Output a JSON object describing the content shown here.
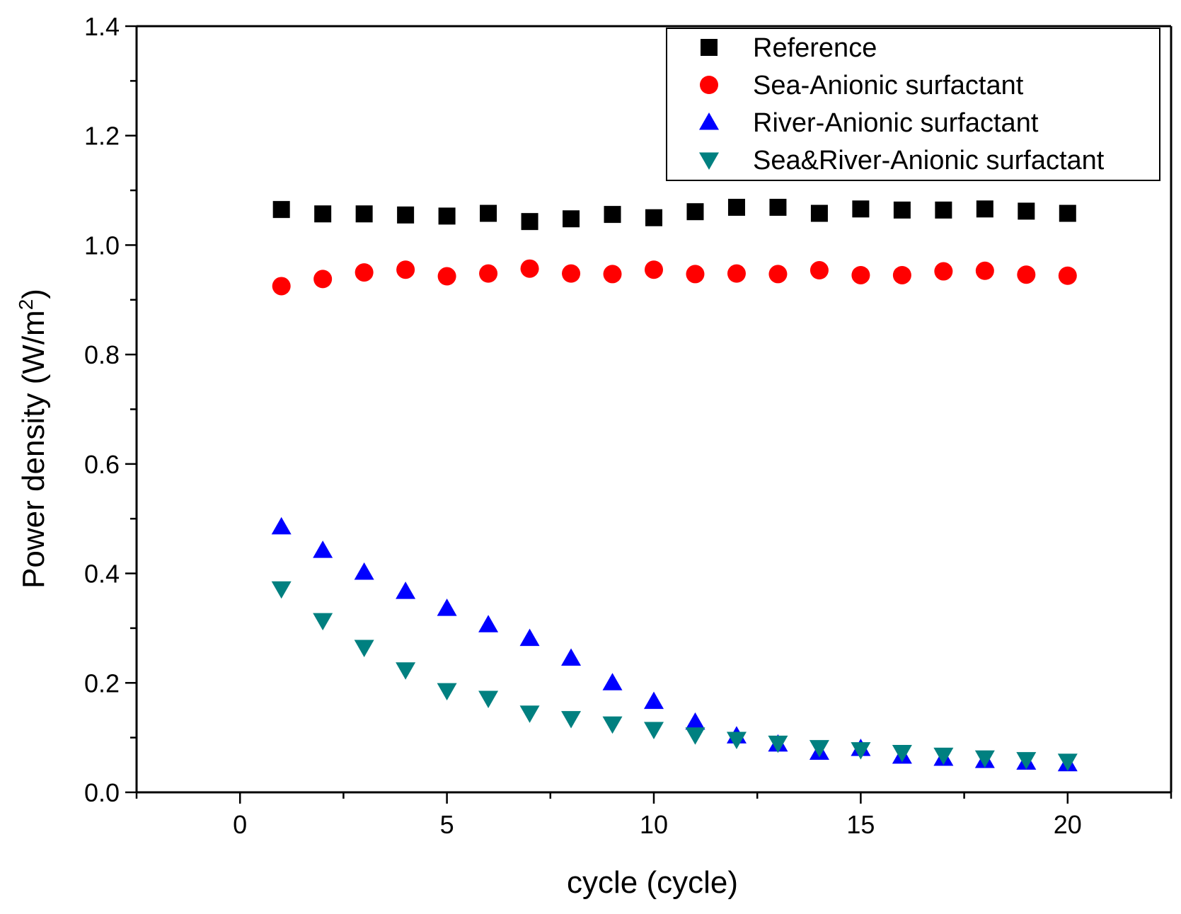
{
  "chart_data": {
    "type": "scatter",
    "title": "",
    "xlabel": "cycle (cycle)",
    "ylabel_main": "Power density (W/m",
    "ylabel_sup": "2",
    "ylabel_close": ")",
    "xlim": [
      -2.5,
      22.5
    ],
    "ylim": [
      0.0,
      1.4
    ],
    "x_ticks": [
      0,
      5,
      10,
      15,
      20
    ],
    "x_tick_labels": [
      "0",
      "5",
      "10",
      "15",
      "20"
    ],
    "y_ticks": [
      0.0,
      0.2,
      0.4,
      0.6,
      0.8,
      1.0,
      1.2,
      1.4
    ],
    "y_tick_labels": [
      "0.0",
      "0.2",
      "0.4",
      "0.6",
      "0.8",
      "1.0",
      "1.2",
      "1.4"
    ],
    "grid": false,
    "legend_position": "top-right",
    "x": [
      1,
      2,
      3,
      4,
      5,
      6,
      7,
      8,
      9,
      10,
      11,
      12,
      13,
      14,
      15,
      16,
      17,
      18,
      19,
      20
    ],
    "series": [
      {
        "name": "Reference",
        "marker": "square",
        "color": "#000000",
        "values": [
          1.065,
          1.057,
          1.057,
          1.055,
          1.053,
          1.058,
          1.043,
          1.048,
          1.056,
          1.05,
          1.061,
          1.069,
          1.069,
          1.058,
          1.066,
          1.064,
          1.064,
          1.066,
          1.062,
          1.058
        ]
      },
      {
        "name": "Sea-Anionic surfactant",
        "marker": "circle",
        "color": "#ff0000",
        "values": [
          0.925,
          0.938,
          0.95,
          0.955,
          0.943,
          0.948,
          0.957,
          0.948,
          0.947,
          0.955,
          0.947,
          0.948,
          0.947,
          0.954,
          0.945,
          0.945,
          0.952,
          0.953,
          0.946,
          0.944
        ]
      },
      {
        "name": "River-Anionic surfactant",
        "marker": "triangle-up",
        "color": "#0000ff",
        "values": [
          0.485,
          0.442,
          0.402,
          0.367,
          0.336,
          0.306,
          0.281,
          0.245,
          0.2,
          0.166,
          0.128,
          0.103,
          0.088,
          0.073,
          0.08,
          0.066,
          0.062,
          0.058,
          0.055,
          0.052
        ]
      },
      {
        "name": "Sea&River-Anionic surfactant",
        "marker": "triangle-down",
        "color": "#008080",
        "values": [
          0.372,
          0.314,
          0.265,
          0.224,
          0.186,
          0.172,
          0.145,
          0.135,
          0.125,
          0.115,
          0.105,
          0.097,
          0.09,
          0.082,
          0.078,
          0.073,
          0.068,
          0.063,
          0.06,
          0.057
        ]
      }
    ]
  }
}
